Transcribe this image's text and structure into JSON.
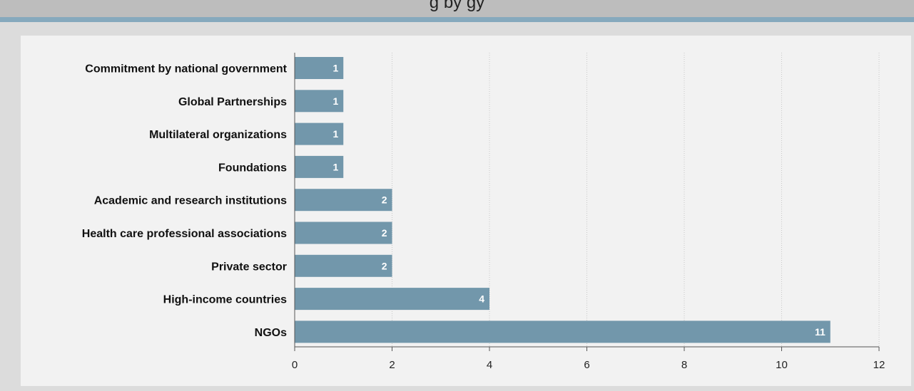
{
  "header": {
    "title": "g      by            gy"
  },
  "colors": {
    "bar": "#7297ab",
    "panel": "#f2f2f2",
    "accent": "#86a9bd",
    "grid": "#c8c8c8",
    "axis": "#555555"
  },
  "chart_data": {
    "type": "bar",
    "orientation": "horizontal",
    "title": "",
    "xlabel": "",
    "ylabel": "",
    "categories": [
      "Commitment by national government",
      "Global Partnerships",
      "Multilateral organizations",
      "Foundations",
      "Academic and research institutions",
      "Health care professional associations",
      "Private sector",
      "High-income countries",
      "NGOs"
    ],
    "values": [
      1,
      1,
      1,
      1,
      2,
      2,
      2,
      4,
      11
    ],
    "xlim": [
      0,
      12
    ],
    "xticks": [
      0,
      2,
      4,
      6,
      8,
      10,
      12
    ],
    "grid": "vertical-dotted",
    "legend": "none"
  }
}
